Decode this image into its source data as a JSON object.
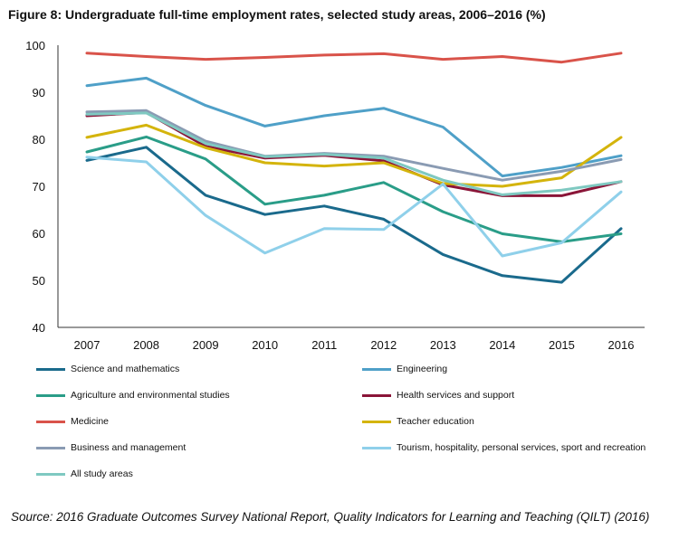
{
  "chart_data": {
    "type": "line",
    "title": "Figure 8: Undergraduate full-time employment rates, selected study areas, 2006–2016 (%)",
    "xlabel": "",
    "ylabel": "",
    "ylim": [
      40,
      100
    ],
    "yticks": [
      "40",
      "50",
      "60",
      "70",
      "80",
      "90",
      "100"
    ],
    "categories": [
      "2007",
      "2008",
      "2009",
      "2010",
      "2011",
      "2012",
      "2013",
      "2014",
      "2015",
      "2016"
    ],
    "grid": false,
    "legend_position": "bottom",
    "series": [
      {
        "name": "Science and mathematics",
        "color": "#1a6a8c",
        "values": [
          75.5,
          78.3,
          68.1,
          64.0,
          65.8,
          63.0,
          55.5,
          51.0,
          49.6,
          61.0
        ]
      },
      {
        "name": "Engineering",
        "color": "#4fa0c8",
        "values": [
          91.4,
          93.0,
          87.2,
          82.8,
          85.0,
          86.6,
          82.6,
          72.2,
          74.0,
          76.5
        ]
      },
      {
        "name": "Agriculture and environmental studies",
        "color": "#2a9d88",
        "values": [
          77.3,
          80.5,
          75.8,
          66.2,
          68.1,
          70.8,
          64.6,
          59.9,
          58.2,
          59.9
        ]
      },
      {
        "name": "Health services and support",
        "color": "#8a1538",
        "values": [
          85.0,
          85.7,
          78.5,
          76.0,
          76.6,
          75.4,
          70.3,
          68.0,
          68.0,
          71.0
        ]
      },
      {
        "name": "Medicine",
        "color": "#d9534a",
        "values": [
          98.3,
          97.6,
          97.0,
          97.4,
          97.9,
          98.2,
          97.0,
          97.6,
          96.4,
          98.3
        ]
      },
      {
        "name": "Teacher education",
        "color": "#d4b40c",
        "values": [
          80.4,
          83.0,
          78.2,
          75.0,
          74.3,
          75.0,
          70.6,
          70.0,
          71.8,
          80.4
        ]
      },
      {
        "name": "Business and management",
        "color": "#8a9bb3",
        "values": [
          85.8,
          86.1,
          79.6,
          76.4,
          77.0,
          76.4,
          73.8,
          71.3,
          73.2,
          75.7
        ]
      },
      {
        "name": "Tourism, hospitality, personal services, sport and recreation",
        "color": "#8fd0ea",
        "values": [
          76.2,
          75.2,
          63.8,
          55.8,
          61.0,
          60.8,
          70.5,
          55.2,
          58.0,
          68.8
        ]
      },
      {
        "name": "All study areas",
        "color": "#7fc9c1",
        "values": [
          85.3,
          85.6,
          79.1,
          76.3,
          76.8,
          76.0,
          71.3,
          68.2,
          69.2,
          71.0
        ]
      }
    ]
  },
  "source": "Source: 2016 Graduate Outcomes Survey National Report, Quality Indicators for Learning and Teaching (QILT) (2016)"
}
